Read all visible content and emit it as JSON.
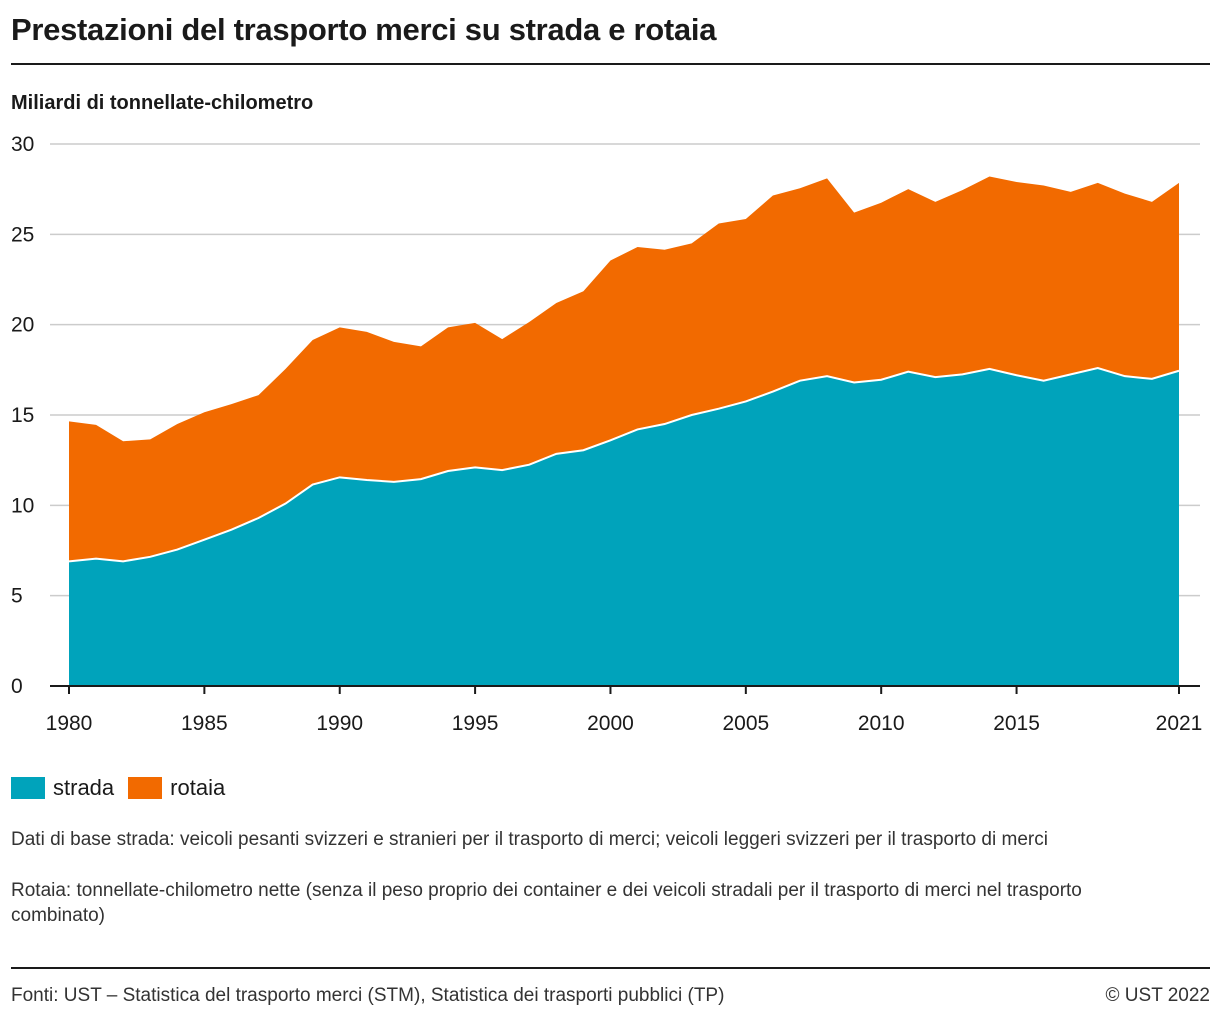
{
  "title": "Prestazioni del trasporto merci su strada e rotaia",
  "unit_label": "Miliardi di tonnellate-chilometro",
  "legend": {
    "strada": "strada",
    "rotaia": "rotaia"
  },
  "notes": {
    "road": "Dati di base strada: veicoli pesanti svizzeri e stranieri per il trasporto di merci; veicoli leggeri svizzeri per il trasporto di merci",
    "rail": "Rotaia: tonnellate-chilometro nette (senza il peso proprio dei container e dei veicoli stradali per il trasporto di merci nel trasporto combinato)"
  },
  "footer": {
    "sources": "Fonti: UST – Statistica del trasporto merci (STM), Statistica dei trasporti pubblici (TP)",
    "copyright": "© UST 2022"
  },
  "colors": {
    "strada": "#00A3BB",
    "rotaia": "#F26A00",
    "grid": "#cccccc",
    "axis": "#1a1a1a"
  },
  "chart_data": {
    "type": "area",
    "stacked": true,
    "title": "Prestazioni del trasporto merci su strada e rotaia",
    "ylabel": "Miliardi di tonnellate-chilometro",
    "ylim": [
      0,
      30
    ],
    "yticks": [
      0,
      5,
      10,
      15,
      20,
      25,
      30
    ],
    "xticks": [
      1980,
      1985,
      1990,
      1995,
      2000,
      2005,
      2010,
      2015,
      2021
    ],
    "grid": true,
    "legend_position": "bottom-left",
    "x": [
      1980,
      1981,
      1982,
      1983,
      1984,
      1985,
      1986,
      1987,
      1988,
      1989,
      1990,
      1991,
      1992,
      1993,
      1994,
      1995,
      1996,
      1997,
      1998,
      1999,
      2000,
      2001,
      2002,
      2003,
      2004,
      2005,
      2006,
      2007,
      2008,
      2009,
      2010,
      2011,
      2012,
      2013,
      2014,
      2015,
      2016,
      2017,
      2018,
      2019,
      2020,
      2021
    ],
    "series": [
      {
        "name": "strada",
        "values": [
          6.9,
          7.05,
          6.9,
          7.15,
          7.55,
          8.1,
          8.65,
          9.3,
          10.1,
          11.15,
          11.55,
          11.4,
          11.3,
          11.45,
          11.9,
          12.1,
          11.95,
          12.25,
          12.85,
          13.05,
          13.6,
          14.2,
          14.5,
          15.0,
          15.35,
          15.75,
          16.3,
          16.9,
          17.15,
          16.8,
          16.95,
          17.4,
          17.1,
          17.25,
          17.55,
          17.2,
          16.9,
          17.25,
          17.6,
          17.15,
          17.0,
          17.45
        ]
      },
      {
        "name": "rotaia",
        "values": [
          7.75,
          7.4,
          6.65,
          6.5,
          6.95,
          7.05,
          6.95,
          6.8,
          7.45,
          8.0,
          8.3,
          8.2,
          7.75,
          7.35,
          7.95,
          8.0,
          7.25,
          7.9,
          8.35,
          8.8,
          9.95,
          10.1,
          9.65,
          9.5,
          10.25,
          10.1,
          10.85,
          10.65,
          10.95,
          9.4,
          9.8,
          10.1,
          9.7,
          10.2,
          10.65,
          10.7,
          10.8,
          10.1,
          10.25,
          10.1,
          9.8,
          10.4
        ]
      }
    ]
  }
}
